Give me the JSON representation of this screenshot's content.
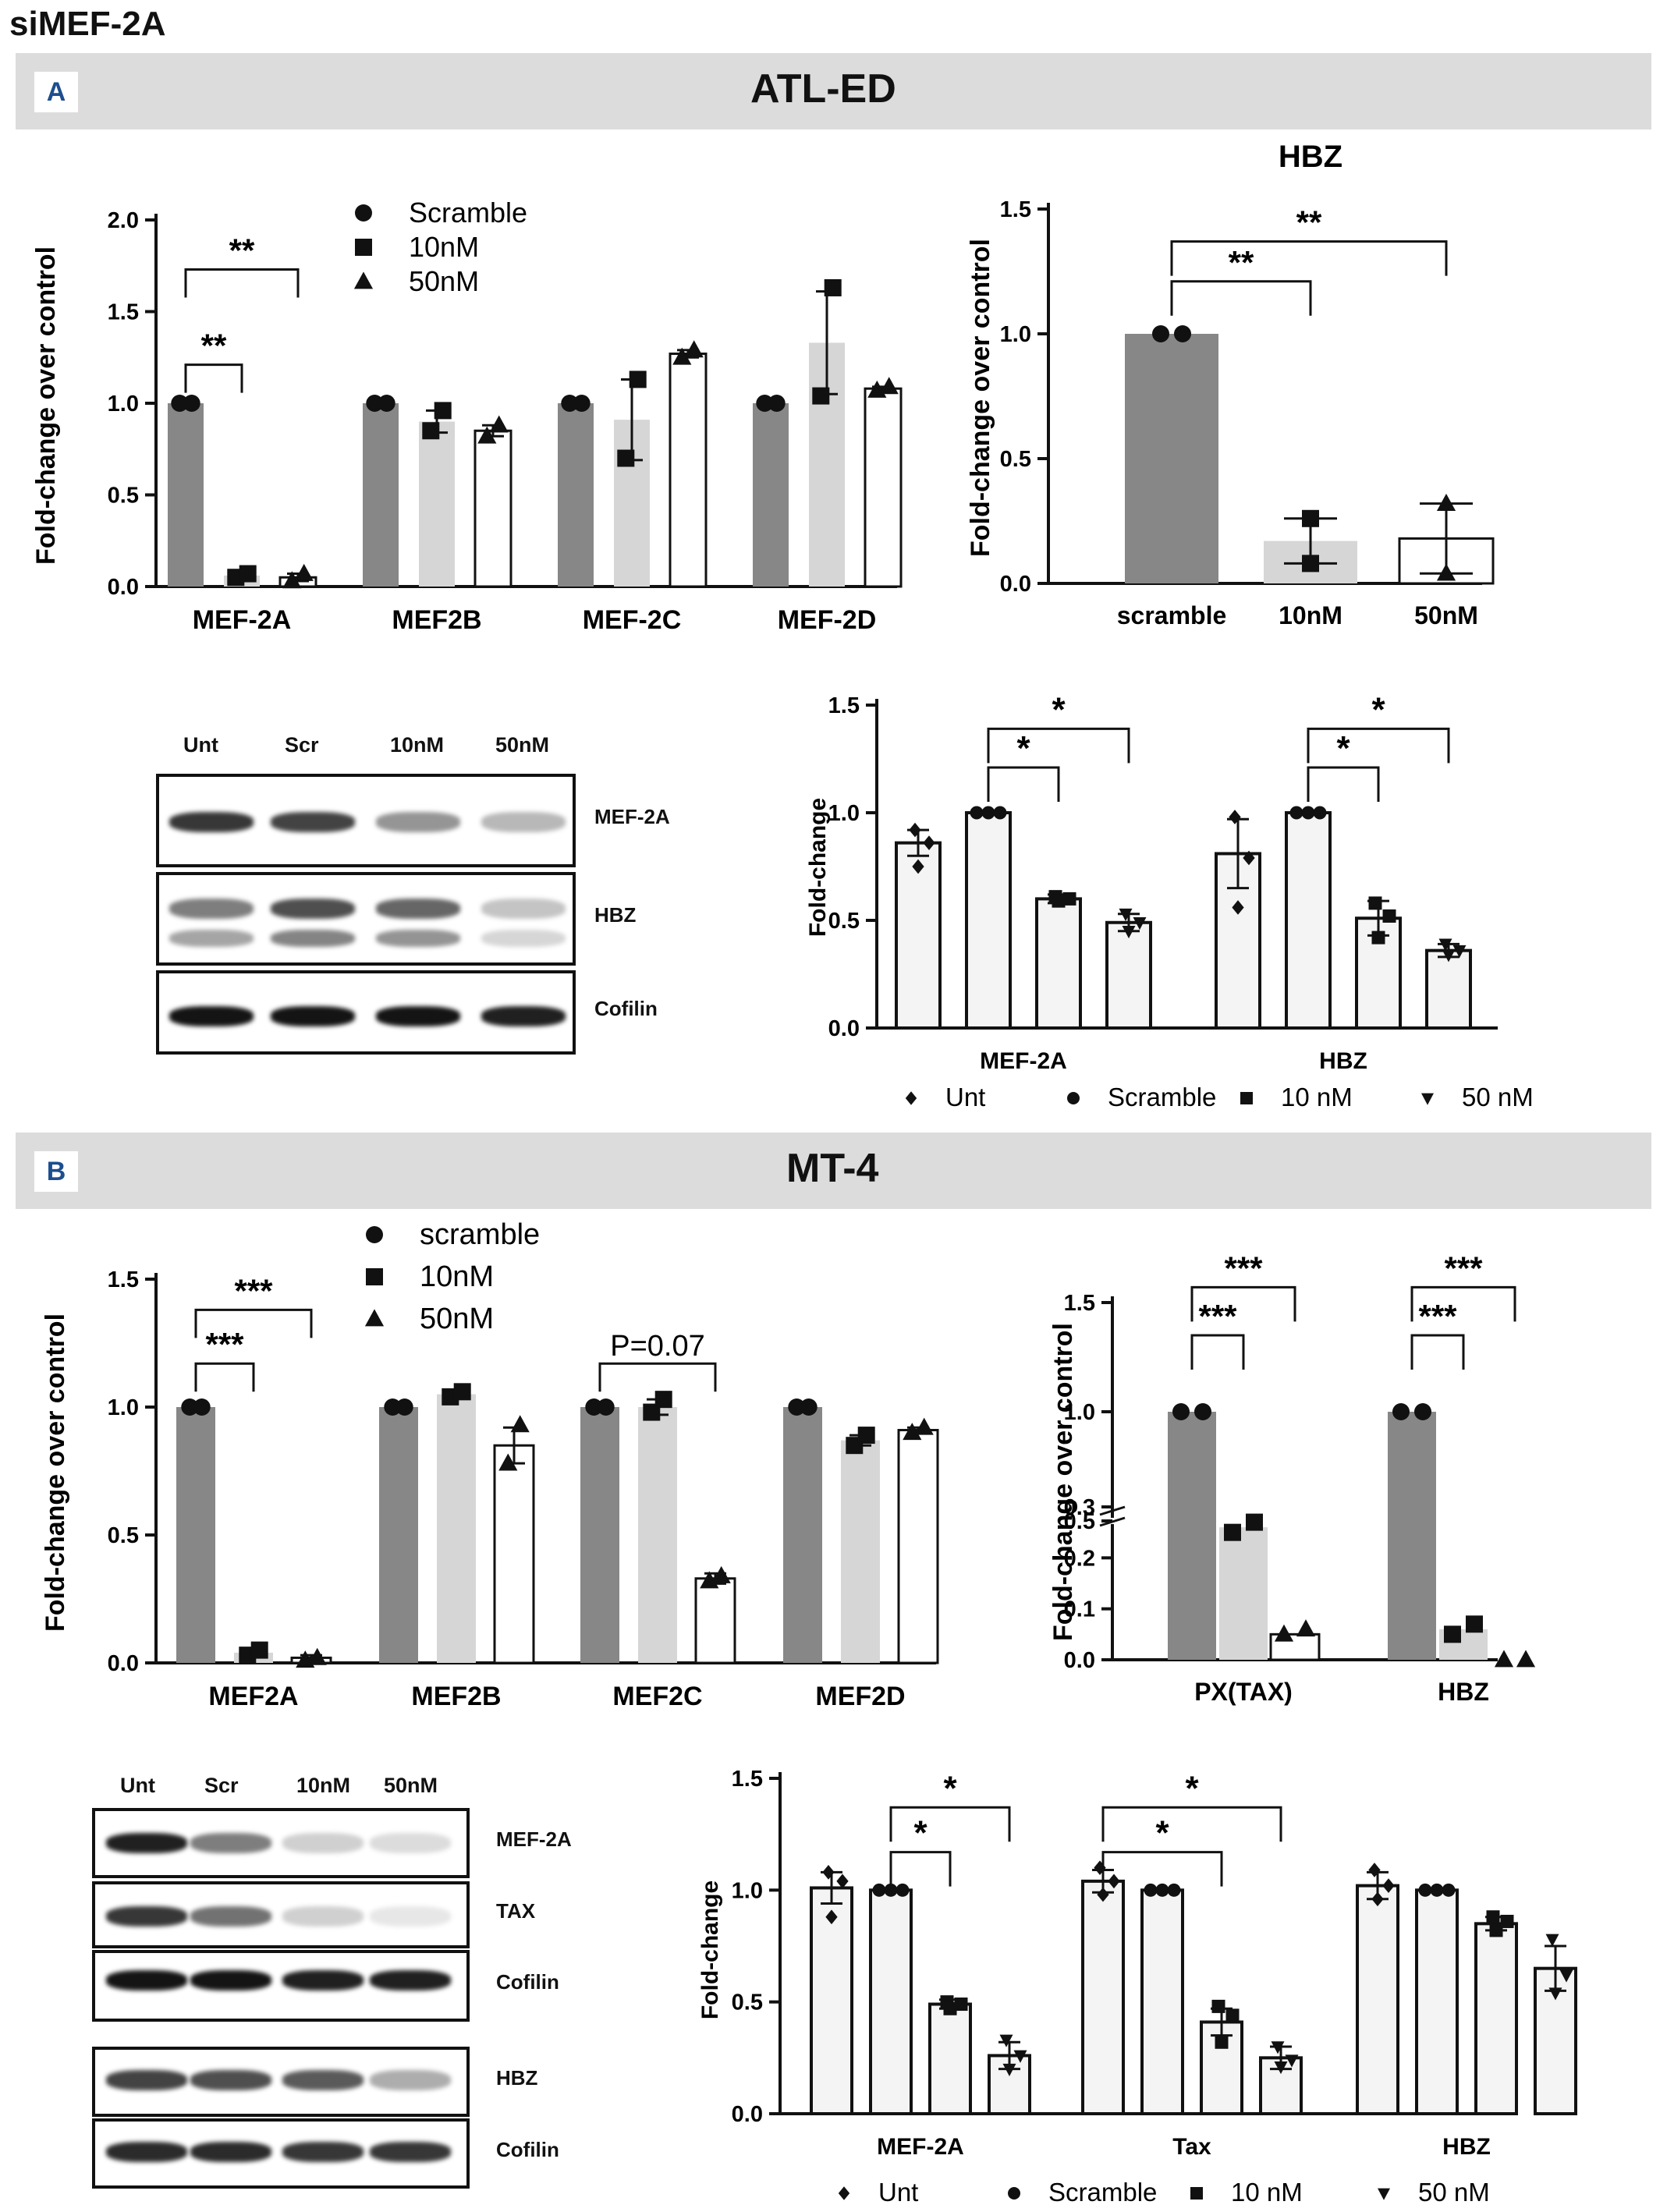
{
  "page_title": "siMEF-2A",
  "panels": {
    "A": {
      "letter": "A",
      "title": "ATL-ED"
    },
    "B": {
      "letter": "B",
      "title": "MT-4"
    }
  },
  "colors": {
    "dark": "#878787",
    "light": "#d6d6d6",
    "white": "#ffffff",
    "pale": "#f4f4f4",
    "banner": "#dcdcdc",
    "accent": "#1d4e8f"
  },
  "blots": {
    "A": {
      "lanes": [
        "Unt",
        "Scr",
        "10nM",
        "50nM"
      ],
      "rows": [
        "MEF-2A",
        "HBZ",
        "Cofilin"
      ]
    },
    "B": {
      "lanes": [
        "Unt",
        "Scr",
        "10nM",
        "50nM"
      ],
      "rows": [
        "MEF-2A",
        "TAX",
        "Cofilin",
        "HBZ",
        "Cofilin"
      ]
    }
  },
  "chart_data": [
    {
      "id": "A1",
      "type": "bar",
      "ylabel": "Fold-change over control",
      "ylim": [
        0,
        2.0
      ],
      "yticks": [
        "0.0",
        "0.5",
        "1.0",
        "1.5",
        "2.0"
      ],
      "categories": [
        "MEF-2A",
        "MEF2B",
        "MEF-2C",
        "MEF-2D"
      ],
      "legend": [
        {
          "label": "Scramble",
          "marker": "circle"
        },
        {
          "label": "10nM",
          "marker": "square"
        },
        {
          "label": "50nM",
          "marker": "triangle"
        }
      ],
      "series": [
        {
          "name": "Scramble",
          "fill": "dark",
          "values": [
            1.0,
            1.0,
            1.0,
            1.0
          ],
          "err": [
            0,
            0,
            0,
            0
          ],
          "points": [
            [
              1.0,
              1.0
            ],
            [
              1.0,
              1.0
            ],
            [
              1.0,
              1.0
            ],
            [
              1.0,
              1.0
            ]
          ]
        },
        {
          "name": "10nM",
          "fill": "light",
          "values": [
            0.06,
            0.9,
            0.91,
            1.33
          ],
          "err": [
            0.01,
            0.06,
            0.22,
            0.28
          ],
          "points": [
            [
              0.05,
              0.07
            ],
            [
              0.85,
              0.96
            ],
            [
              0.7,
              1.13
            ],
            [
              1.04,
              1.63
            ]
          ]
        },
        {
          "name": "50nM",
          "fill": "white",
          "values": [
            0.05,
            0.85,
            1.27,
            1.08
          ],
          "err": [
            0.02,
            0.03,
            0.02,
            0.01
          ],
          "points": [
            [
              0.03,
              0.07
            ],
            [
              0.82,
              0.88
            ],
            [
              1.25,
              1.29
            ],
            [
              1.07,
              1.09
            ]
          ]
        }
      ],
      "sig": [
        {
          "label": "**",
          "cat": 0,
          "from": 0,
          "to": 1,
          "y": 1.21
        },
        {
          "label": "**",
          "cat": 0,
          "from": 0,
          "to": 2,
          "y": 1.73
        }
      ]
    },
    {
      "id": "A2",
      "type": "bar",
      "title": "HBZ",
      "ylabel": "Fold-change over control",
      "ylim": [
        0,
        1.5
      ],
      "yticks": [
        "0.0",
        "0.5",
        "1.0",
        "1.5"
      ],
      "categories": [
        "scramble",
        "10nM",
        "50nM"
      ],
      "values": [
        1.0,
        0.17,
        0.18
      ],
      "err": [
        0,
        0.09,
        0.14
      ],
      "points": [
        [
          1.0,
          1.0
        ],
        [
          0.26,
          0.08
        ],
        [
          0.32,
          0.04
        ]
      ],
      "sig": [
        {
          "label": "**",
          "from": 0,
          "to": 1,
          "y": 1.21
        },
        {
          "label": "**",
          "from": 0,
          "to": 2,
          "y": 1.37
        }
      ]
    },
    {
      "id": "A3",
      "type": "bar",
      "ylabel": "Fold-change",
      "ylim": [
        0,
        1.5
      ],
      "yticks": [
        "0.0",
        "0.5",
        "1.0",
        "1.5"
      ],
      "categories": [
        "MEF-2A",
        "HBZ"
      ],
      "legend": [
        {
          "label": "Unt",
          "marker": "diamond"
        },
        {
          "label": "Scramble",
          "marker": "circle"
        },
        {
          "label": "10 nM",
          "marker": "square"
        },
        {
          "label": "50 nM",
          "marker": "triangle-down"
        }
      ],
      "series": [
        {
          "name": "Unt",
          "values": [
            0.86,
            0.81
          ],
          "err": [
            0.06,
            0.16
          ],
          "points": [
            [
              0.92,
              0.86,
              0.75
            ],
            [
              0.98,
              0.79,
              0.56
            ]
          ]
        },
        {
          "name": "Scramble",
          "values": [
            1.0,
            1.0
          ],
          "err": [
            0,
            0
          ],
          "points": [
            [
              1.0,
              1.0,
              1.0
            ],
            [
              1.0,
              1.0,
              1.0
            ]
          ]
        },
        {
          "name": "10 nM",
          "values": [
            0.6,
            0.51
          ],
          "err": [
            0.02,
            0.08
          ],
          "points": [
            [
              0.61,
              0.6,
              0.59
            ],
            [
              0.58,
              0.52,
              0.42
            ]
          ]
        },
        {
          "name": "50 nM",
          "values": [
            0.49,
            0.36
          ],
          "err": [
            0.04,
            0.03
          ],
          "points": [
            [
              0.53,
              0.49,
              0.45
            ],
            [
              0.39,
              0.36,
              0.34
            ]
          ]
        }
      ],
      "sig": [
        {
          "label": "*",
          "cat": 0,
          "from": 1,
          "to": 2,
          "y": 1.21
        },
        {
          "label": "*",
          "cat": 0,
          "from": 1,
          "to": 3,
          "y": 1.39
        },
        {
          "label": "*",
          "cat": 1,
          "from": 1,
          "to": 2,
          "y": 1.21
        },
        {
          "label": "*",
          "cat": 1,
          "from": 1,
          "to": 3,
          "y": 1.39
        }
      ]
    },
    {
      "id": "B1",
      "type": "bar",
      "ylabel": "Fold-change over control",
      "ylim": [
        0,
        1.5
      ],
      "yticks": [
        "0.0",
        "0.5",
        "1.0",
        "1.5"
      ],
      "categories": [
        "MEF2A",
        "MEF2B",
        "MEF2C",
        "MEF2D"
      ],
      "legend": [
        {
          "label": "scramble",
          "marker": "circle"
        },
        {
          "label": "10nM",
          "marker": "square"
        },
        {
          "label": "50nM",
          "marker": "triangle"
        }
      ],
      "series": [
        {
          "name": "scramble",
          "fill": "dark",
          "values": [
            1.0,
            1.0,
            1.0,
            1.0
          ],
          "err": [
            0,
            0,
            0,
            0
          ],
          "points": [
            [
              1.0,
              1.0
            ],
            [
              1.0,
              1.0
            ],
            [
              1.0,
              1.0
            ],
            [
              1.0,
              1.0
            ]
          ]
        },
        {
          "name": "10nM",
          "fill": "light",
          "values": [
            0.04,
            1.05,
            1.0,
            0.87
          ],
          "err": [
            0.01,
            0.01,
            0.03,
            0.02
          ],
          "points": [
            [
              0.03,
              0.05
            ],
            [
              1.04,
              1.06
            ],
            [
              0.98,
              1.03
            ],
            [
              0.85,
              0.89
            ]
          ]
        },
        {
          "name": "50nM",
          "fill": "white",
          "values": [
            0.02,
            0.85,
            0.33,
            0.91
          ],
          "err": [
            0.01,
            0.07,
            0.02,
            0.01
          ],
          "points": [
            [
              0.01,
              0.02
            ],
            [
              0.78,
              0.93
            ],
            [
              0.32,
              0.34
            ],
            [
              0.9,
              0.92
            ]
          ]
        }
      ],
      "sig": [
        {
          "label": "***",
          "cat": 0,
          "from": 0,
          "to": 1,
          "y": 1.17
        },
        {
          "label": "***",
          "cat": 0,
          "from": 0,
          "to": 2,
          "y": 1.38
        },
        {
          "label": "P=0.07",
          "cat": 2,
          "from": 0,
          "to": 2,
          "y": 1.17
        }
      ]
    },
    {
      "id": "B2",
      "type": "bar",
      "broken_axis": true,
      "ylabel": "Fold-change over control",
      "yticks_lower": [
        "0.0",
        "0.1",
        "0.2",
        "0.3"
      ],
      "yticks_upper": [
        "0.5",
        "1.0",
        "1.5"
      ],
      "categories": [
        "PX(TAX)",
        "HBZ"
      ],
      "series": [
        {
          "name": "scramble",
          "fill": "dark",
          "values": [
            1.0,
            1.0
          ],
          "points": [
            [
              1.0,
              1.0
            ],
            [
              1.0,
              1.0
            ]
          ]
        },
        {
          "name": "10nM",
          "fill": "light",
          "values": [
            0.26,
            0.06
          ],
          "points": [
            [
              0.25,
              0.27
            ],
            [
              0.05,
              0.07
            ]
          ]
        },
        {
          "name": "50nM",
          "fill": "white",
          "values": [
            0.05,
            0.0
          ],
          "points": [
            [
              0.05,
              0.06
            ],
            [
              0.0,
              0.0
            ]
          ]
        }
      ],
      "sig": [
        {
          "label": "***",
          "cat": 0,
          "from": 0,
          "to": 1,
          "y": 1.35
        },
        {
          "label": "***",
          "cat": 0,
          "from": 0,
          "to": 2,
          "y": 1.57
        },
        {
          "label": "***",
          "cat": 1,
          "from": 0,
          "to": 1,
          "y": 1.35
        },
        {
          "label": "***",
          "cat": 1,
          "from": 0,
          "to": 2,
          "y": 1.57
        }
      ]
    },
    {
      "id": "B3",
      "type": "bar",
      "ylabel": "Fold-change",
      "ylim": [
        0,
        1.5
      ],
      "yticks": [
        "0.0",
        "0.5",
        "1.0",
        "1.5"
      ],
      "categories": [
        "MEF-2A",
        "Tax",
        "HBZ"
      ],
      "legend": [
        {
          "label": "Unt",
          "marker": "diamond"
        },
        {
          "label": "Scramble",
          "marker": "circle"
        },
        {
          "label": "10 nM",
          "marker": "square"
        },
        {
          "label": "50 nM",
          "marker": "triangle-down"
        }
      ],
      "series": [
        {
          "name": "Unt",
          "values": [
            1.01,
            1.04,
            1.02
          ],
          "err": [
            0.07,
            0.05,
            0.06
          ],
          "points": [
            [
              1.08,
              1.04,
              0.88
            ],
            [
              1.1,
              1.04,
              0.98
            ],
            [
              1.09,
              1.02,
              0.96
            ]
          ]
        },
        {
          "name": "Scramble",
          "values": [
            1.0,
            1.0,
            1.0
          ],
          "err": [
            0,
            0,
            0
          ],
          "points": [
            [
              1.0,
              1.0,
              1.0
            ],
            [
              1.0,
              1.0,
              1.0
            ],
            [
              1.0,
              1.0,
              1.0
            ]
          ]
        },
        {
          "name": "10 nM",
          "values": [
            0.49,
            0.41,
            0.85
          ],
          "err": [
            0.02,
            0.06,
            0.03
          ],
          "points": [
            [
              0.5,
              0.49,
              0.47
            ],
            [
              0.48,
              0.44,
              0.32
            ],
            [
              0.88,
              0.86,
              0.82
            ]
          ]
        },
        {
          "name": "50 nM",
          "values": [
            0.26,
            0.25,
            0.65
          ],
          "err": [
            0.06,
            0.05,
            0.1
          ],
          "points": [
            [
              0.33,
              0.26,
              0.2
            ],
            [
              0.3,
              0.24,
              0.21
            ],
            [
              0.78,
              0.62,
              0.54
            ]
          ]
        }
      ],
      "sig": [
        {
          "label": "*",
          "cat": 0,
          "from": 1,
          "to": 2,
          "y": 1.17
        },
        {
          "label": "*",
          "cat": 0,
          "from": 1,
          "to": 3,
          "y": 1.37
        },
        {
          "label": "*",
          "cat": 1,
          "from": 0,
          "to": 2,
          "y": 1.17
        },
        {
          "label": "*",
          "cat": 1,
          "from": 0,
          "to": 3,
          "y": 1.37
        }
      ]
    }
  ]
}
